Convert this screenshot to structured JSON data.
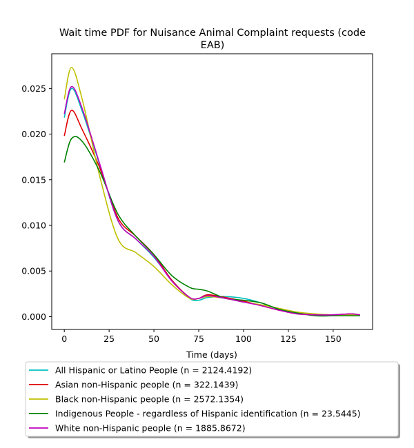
{
  "chart_data": {
    "type": "line",
    "title_lines": [
      "Wait time PDF for Nuisance Animal Complaint  requests (code",
      "EAB)"
    ],
    "xlabel": "Time (days)",
    "ylabel": "",
    "xlim": [
      -7,
      172
    ],
    "ylim": [
      -0.0014,
      0.0288
    ],
    "xticks": [
      0,
      25,
      50,
      75,
      100,
      125,
      150
    ],
    "yticks": [
      0.0,
      0.005,
      0.01,
      0.015,
      0.02,
      0.025
    ],
    "ytick_labels": [
      "0.000",
      "0.005",
      "0.010",
      "0.015",
      "0.020",
      "0.025"
    ],
    "grid": false,
    "legend_position": "bottom",
    "series": [
      {
        "name": "All Hispanic or Latino People (n = 2124.4192)",
        "color": "#00bfbf",
        "x": [
          0,
          4,
          10,
          20,
          30,
          40,
          50,
          60,
          70,
          75,
          80,
          90,
          100,
          110,
          120,
          130,
          140,
          150,
          160,
          165
        ],
        "y": [
          0.0218,
          0.025,
          0.0225,
          0.0165,
          0.0105,
          0.0085,
          0.0065,
          0.004,
          0.002,
          0.0018,
          0.0021,
          0.0022,
          0.002,
          0.0015,
          0.0008,
          0.0004,
          0.0002,
          0.0002,
          0.0003,
          0.0002
        ]
      },
      {
        "name": "Asian non-Hispanic people (n = 322.1439)",
        "color": "#e00000",
        "x": [
          0,
          4,
          10,
          20,
          30,
          40,
          50,
          60,
          70,
          75,
          80,
          90,
          100,
          110,
          120,
          130,
          140,
          150,
          160,
          165
        ],
        "y": [
          0.0198,
          0.0226,
          0.0205,
          0.0162,
          0.0108,
          0.0088,
          0.0068,
          0.004,
          0.0021,
          0.002,
          0.0024,
          0.0021,
          0.0017,
          0.0012,
          0.0007,
          0.0003,
          0.0002,
          0.0002,
          0.0003,
          0.0002
        ]
      },
      {
        "name": "Black non-Hispanic people (n = 2572.1354)",
        "color": "#bfbf00",
        "x": [
          0,
          4,
          10,
          20,
          30,
          40,
          50,
          60,
          70,
          75,
          80,
          90,
          100,
          110,
          120,
          130,
          140,
          150,
          160,
          165
        ],
        "y": [
          0.0238,
          0.0273,
          0.0238,
          0.0152,
          0.0085,
          0.007,
          0.0055,
          0.0035,
          0.002,
          0.002,
          0.0022,
          0.002,
          0.0016,
          0.0013,
          0.0009,
          0.0005,
          0.0003,
          0.0002,
          0.0002,
          0.0002
        ]
      },
      {
        "name": "Indigenous People - regardless of Hispanic identification (n = 23.5445)",
        "color": "#008000",
        "x": [
          0,
          4,
          10,
          20,
          30,
          40,
          50,
          60,
          70,
          75,
          80,
          90,
          100,
          110,
          120,
          130,
          140,
          150,
          160,
          165
        ],
        "y": [
          0.0169,
          0.0195,
          0.0192,
          0.0158,
          0.0112,
          0.0088,
          0.0068,
          0.0045,
          0.0032,
          0.003,
          0.0028,
          0.002,
          0.0018,
          0.0015,
          0.0008,
          0.0004,
          0.0001,
          0.0001,
          0.0001,
          0.0001
        ]
      },
      {
        "name": "White non-Hispanic people (n = 1885.8672)",
        "color": "#bf00bf",
        "x": [
          0,
          4,
          10,
          20,
          30,
          40,
          50,
          60,
          70,
          75,
          80,
          90,
          100,
          110,
          120,
          130,
          140,
          150,
          160,
          165
        ],
        "y": [
          0.0222,
          0.0252,
          0.0228,
          0.0166,
          0.0105,
          0.0085,
          0.0066,
          0.0039,
          0.0021,
          0.002,
          0.0023,
          0.002,
          0.0016,
          0.0012,
          0.0007,
          0.0003,
          0.0002,
          0.0002,
          0.0003,
          0.0002
        ]
      }
    ]
  }
}
